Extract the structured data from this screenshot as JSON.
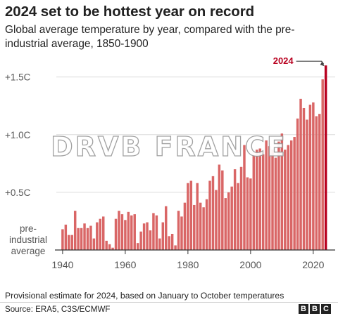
{
  "header": {
    "title": "2024 set to be hottest year on record",
    "subtitle": "Global average temperature by year, compared with the pre-industrial average, 1850-1900"
  },
  "footer": {
    "note": "Provisional estimate for 2024, based on January to October temperatures",
    "source": "Source: ERA5, C3S/ECMWF",
    "logo": [
      "B",
      "B",
      "C"
    ]
  },
  "watermark": "DRVB FRANCE",
  "colors": {
    "bar": "#d96666",
    "highlight": "#b8001f",
    "grid": "#dcdcdc",
    "axis_text": "#555555"
  },
  "chart_data": {
    "type": "bar",
    "title": "2024 set to be hottest year on record",
    "xlabel": "",
    "ylabel": "",
    "x": [
      1940,
      1941,
      1942,
      1943,
      1944,
      1945,
      1946,
      1947,
      1948,
      1949,
      1950,
      1951,
      1952,
      1953,
      1954,
      1955,
      1956,
      1957,
      1958,
      1959,
      1960,
      1961,
      1962,
      1963,
      1964,
      1965,
      1966,
      1967,
      1968,
      1969,
      1970,
      1971,
      1972,
      1973,
      1974,
      1975,
      1976,
      1977,
      1978,
      1979,
      1980,
      1981,
      1982,
      1983,
      1984,
      1985,
      1986,
      1987,
      1988,
      1989,
      1990,
      1991,
      1992,
      1993,
      1994,
      1995,
      1996,
      1997,
      1998,
      1999,
      2000,
      2001,
      2002,
      2003,
      2004,
      2005,
      2006,
      2007,
      2008,
      2009,
      2010,
      2011,
      2012,
      2013,
      2014,
      2015,
      2016,
      2017,
      2018,
      2019,
      2020,
      2021,
      2022,
      2023,
      2024
    ],
    "values": [
      0.18,
      0.22,
      0.13,
      0.13,
      0.34,
      0.19,
      0.19,
      0.23,
      0.19,
      0.21,
      0.1,
      0.24,
      0.27,
      0.29,
      0.08,
      0.05,
      0.02,
      0.27,
      0.34,
      0.31,
      0.26,
      0.33,
      0.3,
      0.31,
      0.06,
      0.16,
      0.23,
      0.24,
      0.17,
      0.32,
      0.3,
      0.1,
      0.24,
      0.38,
      0.12,
      0.14,
      0.04,
      0.34,
      0.29,
      0.41,
      0.58,
      0.6,
      0.39,
      0.58,
      0.41,
      0.37,
      0.44,
      0.6,
      0.64,
      0.52,
      0.74,
      0.69,
      0.45,
      0.5,
      0.55,
      0.7,
      0.58,
      0.72,
      0.91,
      0.63,
      0.62,
      0.82,
      0.87,
      0.88,
      0.83,
      0.95,
      0.9,
      0.87,
      0.8,
      0.94,
      1.01,
      0.87,
      0.91,
      0.95,
      0.98,
      1.14,
      1.31,
      1.23,
      1.13,
      1.26,
      1.28,
      1.16,
      1.18,
      1.48,
      1.6
    ],
    "highlight": {
      "x": 2024,
      "label": "2024"
    },
    "ylim": [
      0,
      1.65
    ],
    "xlim": [
      1938,
      2027
    ],
    "yticks": [
      {
        "value": 0.5,
        "label": "+0.5C"
      },
      {
        "value": 1.0,
        "label": "+1.0C"
      },
      {
        "value": 1.5,
        "label": "+1.5C"
      }
    ],
    "baseline_label": [
      "pre-",
      "industrial",
      "average"
    ],
    "xticks": [
      1940,
      1960,
      1980,
      2000,
      2020
    ],
    "grid": true,
    "legend": "none"
  }
}
